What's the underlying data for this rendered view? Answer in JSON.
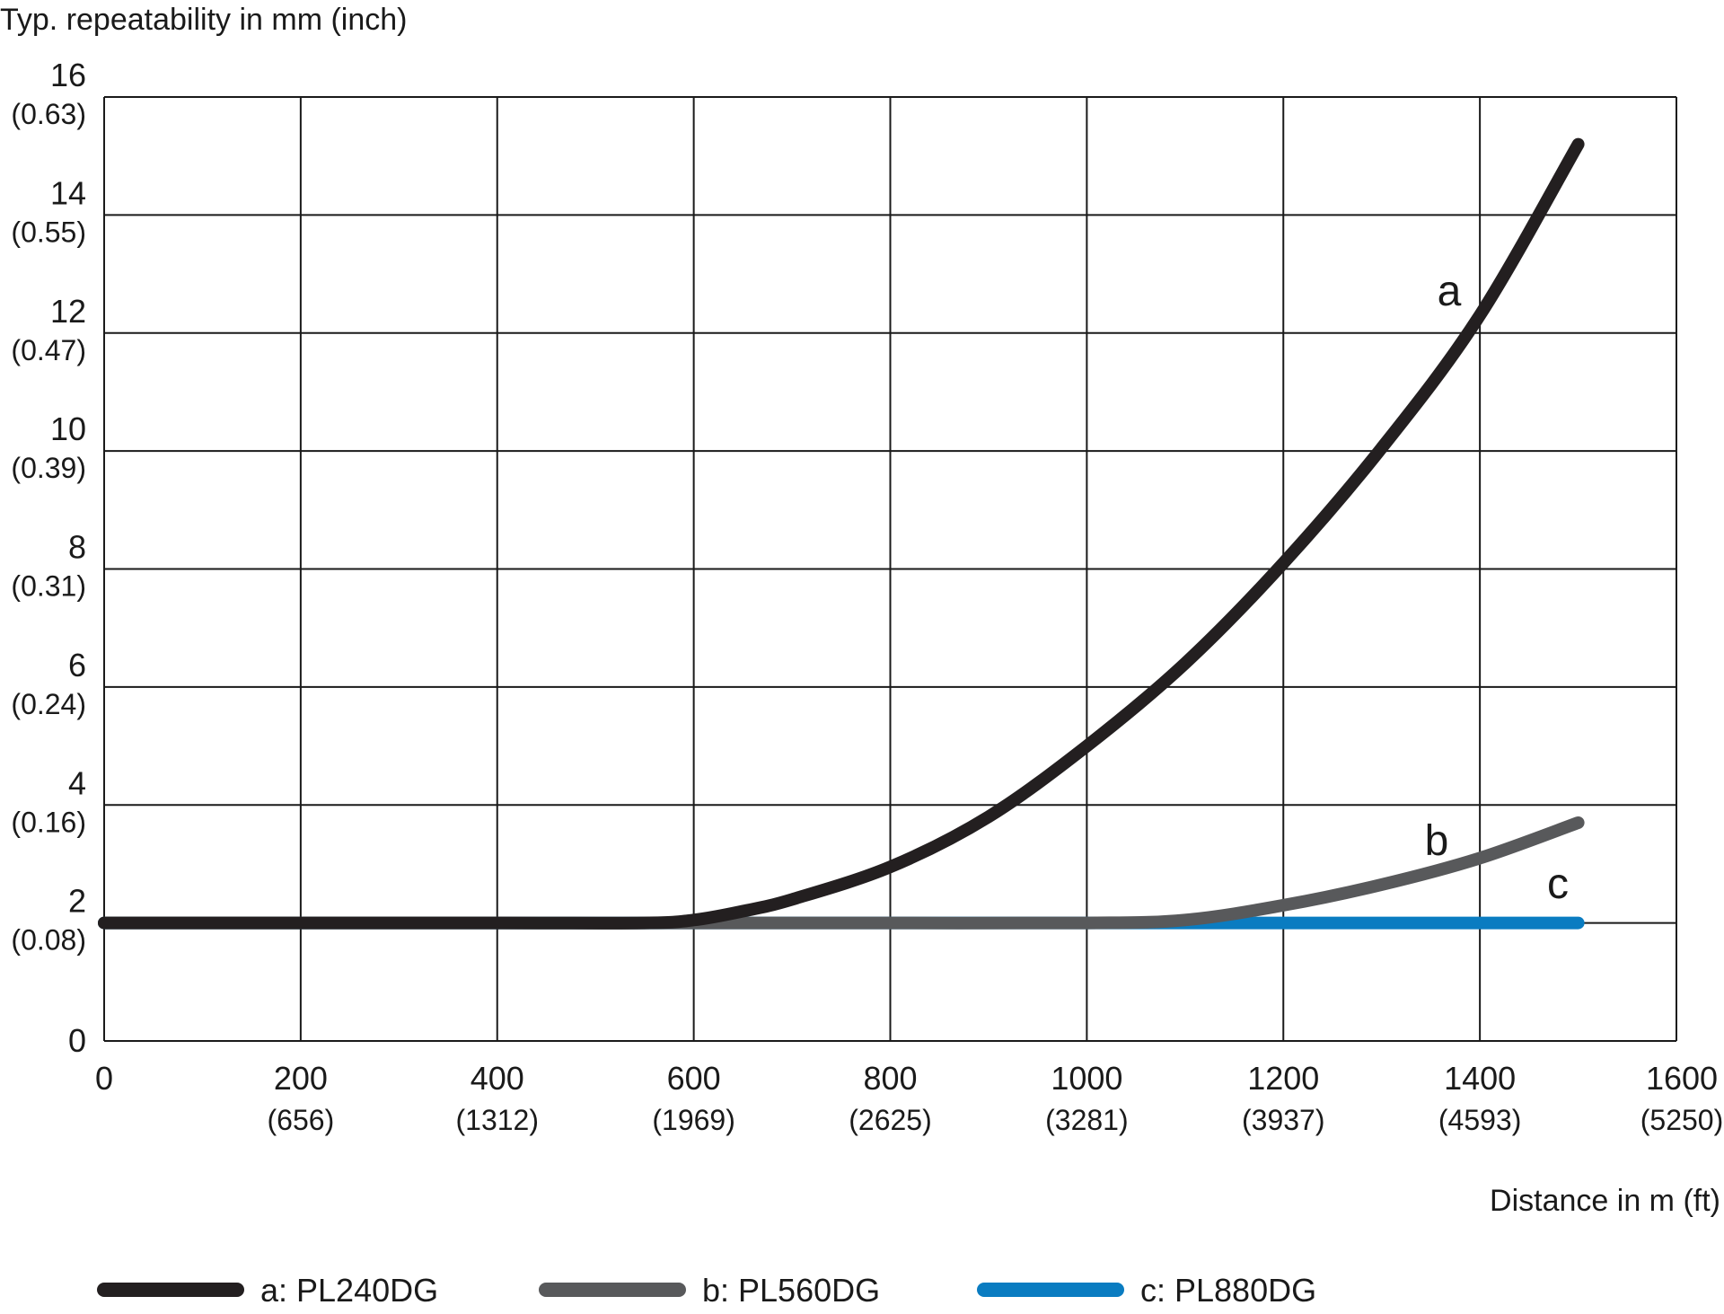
{
  "chart_data": {
    "type": "line",
    "ylabel": "Typ. repeatability in mm (inch)",
    "xlabel": "Distance in m (ft)",
    "xlim": [
      0,
      1600
    ],
    "ylim": [
      0,
      16
    ],
    "grid": true,
    "legend_position": "bottom",
    "x_ticks": [
      {
        "value": 0,
        "label": "0",
        "sub": ""
      },
      {
        "value": 200,
        "label": "200",
        "sub": "(656)"
      },
      {
        "value": 400,
        "label": "400",
        "sub": "(1312)"
      },
      {
        "value": 600,
        "label": "600",
        "sub": "(1969)"
      },
      {
        "value": 800,
        "label": "800",
        "sub": "(2625)"
      },
      {
        "value": 1000,
        "label": "1000",
        "sub": "(3281)"
      },
      {
        "value": 1200,
        "label": "1200",
        "sub": "(3937)"
      },
      {
        "value": 1400,
        "label": "1400",
        "sub": "(4593)"
      },
      {
        "value": 1600,
        "label": "1600",
        "sub": "(5250)"
      }
    ],
    "y_ticks": [
      {
        "value": 0,
        "label": "0",
        "sub": ""
      },
      {
        "value": 2,
        "label": "2",
        "sub": "(0.08)"
      },
      {
        "value": 4,
        "label": "4",
        "sub": "(0.16)"
      },
      {
        "value": 6,
        "label": "6",
        "sub": "(0.24)"
      },
      {
        "value": 8,
        "label": "8",
        "sub": "(0.31)"
      },
      {
        "value": 10,
        "label": "10",
        "sub": "(0.39)"
      },
      {
        "value": 12,
        "label": "12",
        "sub": "(0.47)"
      },
      {
        "value": 14,
        "label": "14",
        "sub": "(0.55)"
      },
      {
        "value": 16,
        "label": "16",
        "sub": "(0.63)"
      }
    ],
    "series": [
      {
        "name": "a: PL240DG",
        "label": "a",
        "color": "#231f20",
        "x": [
          0,
          200,
          400,
          550,
          600,
          650,
          700,
          800,
          900,
          1000,
          1100,
          1200,
          1300,
          1400,
          1500
        ],
        "y": [
          2.0,
          2.0,
          2.0,
          2.0,
          2.05,
          2.2,
          2.4,
          2.95,
          3.8,
          5.0,
          6.4,
          8.1,
          10.05,
          12.3,
          15.2
        ]
      },
      {
        "name": "b: PL560DG",
        "label": "b",
        "color": "#58595b",
        "x": [
          0,
          200,
          400,
          600,
          800,
          1000,
          1100,
          1200,
          1300,
          1400,
          1500
        ],
        "y": [
          2.0,
          2.0,
          2.0,
          2.0,
          2.0,
          2.0,
          2.05,
          2.3,
          2.65,
          3.1,
          3.7
        ]
      },
      {
        "name": "c: PL880DG",
        "label": "c",
        "color": "#0a7cc1",
        "x": [
          0,
          200,
          400,
          600,
          800,
          1000,
          1200,
          1400,
          1500
        ],
        "y": [
          2.0,
          2.0,
          2.0,
          2.0,
          2.0,
          2.0,
          2.0,
          2.0,
          2.0
        ]
      }
    ]
  }
}
